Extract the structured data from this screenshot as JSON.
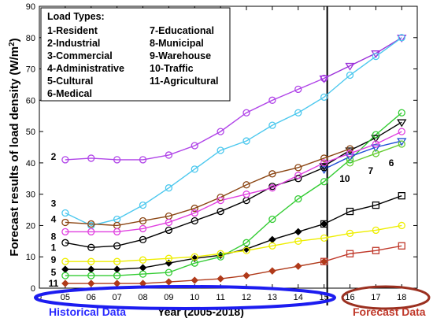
{
  "chart_data": {
    "type": "line",
    "title": "",
    "ylabel": "Forecast results of load density",
    "ylabel_unit": "(W/m",
    "ylabel_unit_sup": "2",
    "ylabel_unit_close": ")",
    "xlabel": "Year (2005-2018)",
    "ylim": [
      0,
      90
    ],
    "yticks": [
      0,
      10,
      20,
      30,
      40,
      50,
      60,
      70,
      80,
      90
    ],
    "x": [
      5,
      6,
      7,
      8,
      9,
      10,
      11,
      12,
      13,
      14,
      15,
      16,
      17,
      18
    ],
    "xticks": [
      {
        "value": 0,
        "label": "0"
      },
      {
        "value": 5,
        "label": "05"
      },
      {
        "value": 6,
        "label": "06"
      },
      {
        "value": 7,
        "label": "07"
      },
      {
        "value": 8,
        "label": "08"
      },
      {
        "value": 9,
        "label": "09"
      },
      {
        "value": 10,
        "label": "10"
      },
      {
        "value": 11,
        "label": "11"
      },
      {
        "value": 12,
        "label": "12"
      },
      {
        "value": 13,
        "label": "13"
      },
      {
        "value": 14,
        "label": "14"
      },
      {
        "value": 15,
        "label": "15"
      },
      {
        "value": 16,
        "label": "16"
      },
      {
        "value": 17,
        "label": "17"
      },
      {
        "value": 18,
        "label": "18"
      }
    ],
    "divider_x": 15,
    "grid": false,
    "legend_title": "Load Types:",
    "legend_position": "top-left",
    "legend_left": [
      "1-Resident",
      "2-Industrial",
      "3-Commercial",
      "4-Administrative",
      "5-Cultural",
      "6-Medical"
    ],
    "legend_right": [
      "7-Educational",
      "8-Municipal",
      "9-Warehouse",
      "10-Traffic",
      "11-Agricultural"
    ],
    "series": [
      {
        "id": "1",
        "color": "#000000",
        "marker": "diamond",
        "values": [
          6,
          6,
          6,
          6.5,
          8,
          9.5,
          10.5,
          12.5,
          15.5,
          18,
          20.5,
          null,
          null,
          null
        ]
      },
      {
        "id": "1f",
        "color": "#000000",
        "marker": "triangle-down",
        "values": [
          null,
          null,
          null,
          null,
          null,
          null,
          null,
          null,
          null,
          null,
          39,
          44,
          48,
          53
        ]
      },
      {
        "id": "2",
        "color": "#b044e8",
        "marker": "circle",
        "values": [
          41,
          41.5,
          41,
          41,
          42.5,
          45.5,
          50,
          56,
          60,
          63.5,
          67,
          null,
          null,
          null
        ]
      },
      {
        "id": "2f",
        "color": "#9b30d9",
        "marker": "triangle-down",
        "values": [
          null,
          null,
          null,
          null,
          null,
          null,
          null,
          null,
          null,
          null,
          67,
          71,
          75,
          80
        ]
      },
      {
        "id": "3",
        "color": "#4cc8ee",
        "marker": "circle",
        "values": [
          24,
          20,
          22,
          26.5,
          32,
          38,
          44,
          47,
          52,
          56,
          61,
          68,
          74,
          80
        ]
      },
      {
        "id": "4",
        "color": "#8b4513",
        "marker": "circle",
        "values": [
          21,
          20.5,
          20,
          21.5,
          23,
          25.5,
          29,
          33,
          36.5,
          38.5,
          41.5,
          44.5,
          null,
          null
        ]
      },
      {
        "id": "5",
        "color": "#33cc33",
        "marker": "circle",
        "values": [
          4,
          4,
          4,
          4.5,
          5,
          8,
          10,
          14.5,
          22,
          28.5,
          34,
          41,
          49,
          56
        ]
      },
      {
        "id": "6",
        "color": "#1f4ed6",
        "marker": "triangle-down",
        "values": [
          null,
          null,
          null,
          null,
          null,
          null,
          null,
          null,
          null,
          null,
          38,
          42,
          45,
          47
        ]
      },
      {
        "id": "7",
        "color": "#66cc33",
        "marker": "circle",
        "values": [
          null,
          null,
          null,
          null,
          null,
          null,
          null,
          null,
          null,
          null,
          null,
          40,
          43,
          46
        ]
      },
      {
        "id": "8",
        "color": "#000000",
        "marker": "circle",
        "values": [
          14.5,
          13,
          13.5,
          15.5,
          18.5,
          21.5,
          24.5,
          28,
          32.5,
          35,
          38.5,
          null,
          null,
          null
        ]
      },
      {
        "id": "8f",
        "color": "#000000",
        "marker": "square",
        "values": [
          null,
          null,
          null,
          null,
          null,
          null,
          null,
          null,
          null,
          null,
          20.5,
          24.5,
          26.5,
          29.5
        ]
      },
      {
        "id": "9",
        "color": "#eeee00",
        "marker": "circle",
        "values": [
          8.5,
          8.5,
          8.5,
          9,
          9.5,
          10,
          11,
          12,
          13.5,
          15,
          16,
          17.5,
          18.5,
          20
        ]
      },
      {
        "id": "10",
        "color": "#e040e0",
        "marker": "circle",
        "values": [
          18,
          18,
          18,
          19,
          21,
          24,
          28,
          30,
          32,
          36,
          40,
          43,
          46,
          50
        ]
      },
      {
        "id": "11",
        "color": "#b03a1a",
        "marker": "diamond",
        "values": [
          1.5,
          1.5,
          1.5,
          1.5,
          2,
          2.5,
          3,
          4,
          5.5,
          7,
          8.5,
          null,
          null,
          null
        ]
      },
      {
        "id": "11f",
        "color": "#c0392b",
        "marker": "square",
        "values": [
          null,
          null,
          null,
          null,
          null,
          null,
          null,
          null,
          null,
          null,
          8.5,
          11,
          12,
          13.5
        ]
      }
    ],
    "left_labels": [
      {
        "text": "2",
        "y": 42
      },
      {
        "text": "3",
        "y": 27
      },
      {
        "text": "4",
        "y": 22
      },
      {
        "text": "8",
        "y": 16.5
      },
      {
        "text": "1",
        "y": 13
      },
      {
        "text": "9",
        "y": 9
      },
      {
        "text": "5",
        "y": 5
      },
      {
        "text": "11",
        "y": 1.5
      }
    ],
    "right_labels": [
      {
        "text": "10",
        "x": 15.8,
        "y": 35
      },
      {
        "text": "7",
        "x": 16.8,
        "y": 37.5
      },
      {
        "text": "6",
        "x": 17.6,
        "y": 40
      }
    ],
    "annotations": {
      "historical": "Historical Data",
      "forecast": "Forecast Data"
    }
  }
}
